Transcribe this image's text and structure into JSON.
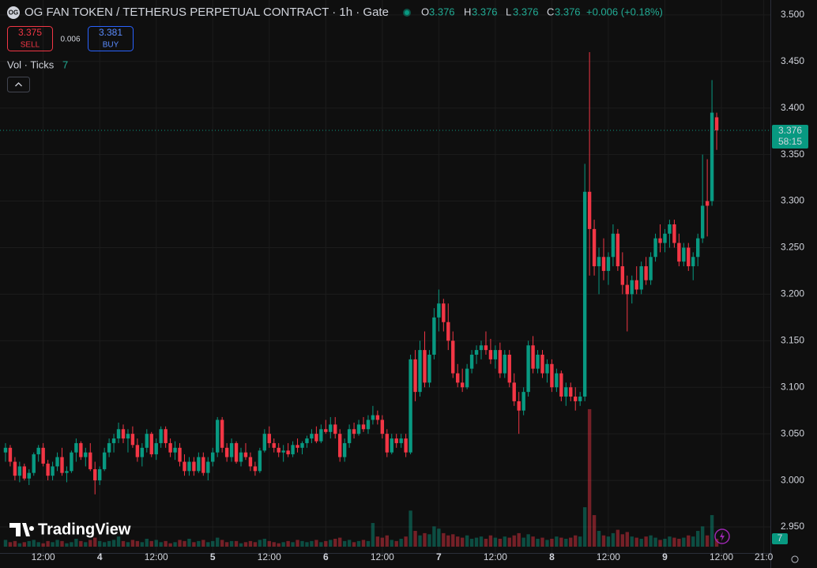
{
  "chart_data": {
    "type": "candlestick",
    "title": "OG FAN TOKEN / TETHERUS PERPETUAL CONTRACT · 1h · Gate",
    "header": {
      "o_label": "O",
      "o": "3.376",
      "h_label": "H",
      "h": "3.376",
      "l_label": "L",
      "l": "3.376",
      "c_label": "C",
      "c": "3.376",
      "change": "+0.006 (+0.18%)"
    },
    "trade": {
      "sell_price": "3.375",
      "sell_label": "SELL",
      "spread": "0.006",
      "buy_price": "3.381",
      "buy_label": "BUY"
    },
    "volume_label": "Vol · Ticks",
    "brand": "TradingView",
    "up_color": "#089981",
    "down_color": "#f23645",
    "xlim": [
      -1.17,
      162.4
    ],
    "xticks": [
      {
        "value": 8,
        "label": "12:00"
      },
      {
        "value": 20,
        "label": "4"
      },
      {
        "value": 32,
        "label": "12:00"
      },
      {
        "value": 44,
        "label": "5"
      },
      {
        "value": 56,
        "label": "12:00"
      },
      {
        "value": 68,
        "label": "6"
      },
      {
        "value": 80,
        "label": "12:00"
      },
      {
        "value": 92,
        "label": "7"
      },
      {
        "value": 104,
        "label": "12:00"
      },
      {
        "value": 116,
        "label": "8"
      },
      {
        "value": 128,
        "label": "12:00"
      },
      {
        "value": 140,
        "label": "9"
      },
      {
        "value": 152,
        "label": "12:00"
      },
      {
        "value": 161,
        "label": "21:0"
      }
    ],
    "ylim": [
      2.922,
      3.516
    ],
    "yticks": [
      {
        "value": 2.95,
        "label": "2.950"
      },
      {
        "value": 3.0,
        "label": "3.000"
      },
      {
        "value": 3.05,
        "label": "3.050"
      },
      {
        "value": 3.1,
        "label": "3.100"
      },
      {
        "value": 3.15,
        "label": "3.150"
      },
      {
        "value": 3.2,
        "label": "3.200"
      },
      {
        "value": 3.25,
        "label": "3.250"
      },
      {
        "value": 3.3,
        "label": "3.300"
      },
      {
        "value": 3.35,
        "label": "3.350"
      },
      {
        "value": 3.4,
        "label": "3.400"
      },
      {
        "value": 3.45,
        "label": "3.450"
      },
      {
        "value": 3.5,
        "label": "3.500"
      }
    ],
    "grid": true,
    "last_price": {
      "value": 3.376,
      "label": "3.376"
    },
    "countdown": "58:15",
    "volume_ylim": [
      0,
      485
    ],
    "candles": [
      [
        3.03,
        3.04,
        3.02,
        3.035
      ],
      [
        3.035,
        3.038,
        3.015,
        3.02
      ],
      [
        3.02,
        3.025,
        3.0,
        3.005
      ],
      [
        3.005,
        3.02,
        2.998,
        3.015
      ],
      [
        3.015,
        3.018,
        3.0,
        3.002
      ],
      [
        3.002,
        3.012,
        2.995,
        3.008
      ],
      [
        3.008,
        3.03,
        3.005,
        3.028
      ],
      [
        3.028,
        3.038,
        3.02,
        3.035
      ],
      [
        3.035,
        3.04,
        3.015,
        3.018
      ],
      [
        3.018,
        3.022,
        3.0,
        3.005
      ],
      [
        3.005,
        3.02,
        3.0,
        3.015
      ],
      [
        3.015,
        3.03,
        3.01,
        3.025
      ],
      [
        3.025,
        3.035,
        3.005,
        3.008
      ],
      [
        3.008,
        3.015,
        2.998,
        3.01
      ],
      [
        3.01,
        3.032,
        3.008,
        3.03
      ],
      [
        3.03,
        3.045,
        3.02,
        3.04
      ],
      [
        3.04,
        3.042,
        3.022,
        3.025
      ],
      [
        3.025,
        3.035,
        3.015,
        3.03
      ],
      [
        3.03,
        3.04,
        3.01,
        3.012
      ],
      [
        3.012,
        3.02,
        2.985,
        3.0
      ],
      [
        3.0,
        3.015,
        2.995,
        3.012
      ],
      [
        3.012,
        3.035,
        3.01,
        3.03
      ],
      [
        3.03,
        3.045,
        3.025,
        3.04
      ],
      [
        3.04,
        3.05,
        3.03,
        3.045
      ],
      [
        3.045,
        3.062,
        3.04,
        3.055
      ],
      [
        3.055,
        3.06,
        3.04,
        3.045
      ],
      [
        3.045,
        3.055,
        3.03,
        3.05
      ],
      [
        3.05,
        3.058,
        3.035,
        3.038
      ],
      [
        3.038,
        3.045,
        3.02,
        3.025
      ],
      [
        3.025,
        3.04,
        3.015,
        3.035
      ],
      [
        3.035,
        3.055,
        3.03,
        3.05
      ],
      [
        3.05,
        3.052,
        3.025,
        3.028
      ],
      [
        3.028,
        3.045,
        3.022,
        3.04
      ],
      [
        3.04,
        3.058,
        3.035,
        3.055
      ],
      [
        3.055,
        3.058,
        3.035,
        3.04
      ],
      [
        3.04,
        3.045,
        3.025,
        3.03
      ],
      [
        3.03,
        3.042,
        3.022,
        3.035
      ],
      [
        3.035,
        3.04,
        3.015,
        3.02
      ],
      [
        3.02,
        3.028,
        3.005,
        3.01
      ],
      [
        3.01,
        3.025,
        3.005,
        3.02
      ],
      [
        3.02,
        3.025,
        3.005,
        3.01
      ],
      [
        3.01,
        3.03,
        3.008,
        3.025
      ],
      [
        3.025,
        3.03,
        3.005,
        3.008
      ],
      [
        3.008,
        3.025,
        3.0,
        3.02
      ],
      [
        3.02,
        3.035,
        3.015,
        3.03
      ],
      [
        3.03,
        3.068,
        3.025,
        3.065
      ],
      [
        3.065,
        3.068,
        3.03,
        3.035
      ],
      [
        3.035,
        3.04,
        3.02,
        3.025
      ],
      [
        3.025,
        3.045,
        3.02,
        3.04
      ],
      [
        3.04,
        3.042,
        3.018,
        3.02
      ],
      [
        3.02,
        3.035,
        3.015,
        3.03
      ],
      [
        3.03,
        3.04,
        3.022,
        3.025
      ],
      [
        3.025,
        3.03,
        3.01,
        3.015
      ],
      [
        3.015,
        3.02,
        3.005,
        3.01
      ],
      [
        3.01,
        3.035,
        3.008,
        3.032
      ],
      [
        3.032,
        3.055,
        3.03,
        3.05
      ],
      [
        3.05,
        3.058,
        3.035,
        3.04
      ],
      [
        3.04,
        3.045,
        3.03,
        3.035
      ],
      [
        3.035,
        3.04,
        3.025,
        3.03
      ],
      [
        3.03,
        3.038,
        3.02,
        3.032
      ],
      [
        3.032,
        3.04,
        3.025,
        3.028
      ],
      [
        3.028,
        3.042,
        3.025,
        3.038
      ],
      [
        3.038,
        3.045,
        3.03,
        3.035
      ],
      [
        3.035,
        3.042,
        3.028,
        3.04
      ],
      [
        3.04,
        3.048,
        3.035,
        3.045
      ],
      [
        3.045,
        3.055,
        3.04,
        3.05
      ],
      [
        3.05,
        3.058,
        3.04,
        3.042
      ],
      [
        3.042,
        3.06,
        3.04,
        3.055
      ],
      [
        3.055,
        3.065,
        3.05,
        3.052
      ],
      [
        3.052,
        3.068,
        3.045,
        3.06
      ],
      [
        3.06,
        3.068,
        3.045,
        3.05
      ],
      [
        3.05,
        3.055,
        3.02,
        3.025
      ],
      [
        3.025,
        3.045,
        3.02,
        3.04
      ],
      [
        3.04,
        3.06,
        3.035,
        3.055
      ],
      [
        3.055,
        3.062,
        3.045,
        3.05
      ],
      [
        3.05,
        3.065,
        3.048,
        3.06
      ],
      [
        3.06,
        3.068,
        3.052,
        3.055
      ],
      [
        3.055,
        3.07,
        3.05,
        3.065
      ],
      [
        3.065,
        3.08,
        3.06,
        3.07
      ],
      [
        3.07,
        3.075,
        3.06,
        3.065
      ],
      [
        3.065,
        3.07,
        3.045,
        3.05
      ],
      [
        3.05,
        3.055,
        3.025,
        3.03
      ],
      [
        3.03,
        3.05,
        3.028,
        3.045
      ],
      [
        3.045,
        3.05,
        3.035,
        3.04
      ],
      [
        3.04,
        3.05,
        3.035,
        3.045
      ],
      [
        3.045,
        3.05,
        3.025,
        3.03
      ],
      [
        3.03,
        3.135,
        3.028,
        3.13
      ],
      [
        3.13,
        3.14,
        3.085,
        3.095
      ],
      [
        3.095,
        3.15,
        3.09,
        3.14
      ],
      [
        3.14,
        3.16,
        3.1,
        3.105
      ],
      [
        3.105,
        3.14,
        3.1,
        3.135
      ],
      [
        3.135,
        3.185,
        3.13,
        3.175
      ],
      [
        3.175,
        3.205,
        3.16,
        3.19
      ],
      [
        3.19,
        3.195,
        3.16,
        3.17
      ],
      [
        3.17,
        3.19,
        3.14,
        3.15
      ],
      [
        3.15,
        3.16,
        3.11,
        3.115
      ],
      [
        3.115,
        3.125,
        3.1,
        3.105
      ],
      [
        3.105,
        3.12,
        3.095,
        3.1
      ],
      [
        3.1,
        3.125,
        3.098,
        3.12
      ],
      [
        3.12,
        3.14,
        3.115,
        3.135
      ],
      [
        3.135,
        3.145,
        3.125,
        3.14
      ],
      [
        3.14,
        3.15,
        3.13,
        3.145
      ],
      [
        3.145,
        3.16,
        3.135,
        3.14
      ],
      [
        3.14,
        3.152,
        3.125,
        3.13
      ],
      [
        3.13,
        3.145,
        3.12,
        3.14
      ],
      [
        3.14,
        3.148,
        3.11,
        3.115
      ],
      [
        3.115,
        3.14,
        3.11,
        3.135
      ],
      [
        3.135,
        3.14,
        3.1,
        3.105
      ],
      [
        3.105,
        3.115,
        3.08,
        3.085
      ],
      [
        3.085,
        3.095,
        3.05,
        3.075
      ],
      [
        3.075,
        3.1,
        3.07,
        3.095
      ],
      [
        3.095,
        3.15,
        3.09,
        3.145
      ],
      [
        3.145,
        3.155,
        3.115,
        3.12
      ],
      [
        3.12,
        3.14,
        3.115,
        3.135
      ],
      [
        3.135,
        3.14,
        3.11,
        3.115
      ],
      [
        3.115,
        3.13,
        3.105,
        3.125
      ],
      [
        3.125,
        3.13,
        3.095,
        3.1
      ],
      [
        3.1,
        3.12,
        3.095,
        3.115
      ],
      [
        3.115,
        3.118,
        3.085,
        3.09
      ],
      [
        3.09,
        3.105,
        3.08,
        3.1
      ],
      [
        3.1,
        3.105,
        3.085,
        3.09
      ],
      [
        3.09,
        3.1,
        3.075,
        3.085
      ],
      [
        3.085,
        3.095,
        3.08,
        3.09
      ],
      [
        3.09,
        3.34,
        3.085,
        3.31
      ],
      [
        3.31,
        3.46,
        3.22,
        3.27
      ],
      [
        3.27,
        3.28,
        3.22,
        3.23
      ],
      [
        3.23,
        3.25,
        3.2,
        3.24
      ],
      [
        3.24,
        3.26,
        3.215,
        3.225
      ],
      [
        3.225,
        3.245,
        3.21,
        3.24
      ],
      [
        3.24,
        3.275,
        3.23,
        3.265
      ],
      [
        3.265,
        3.27,
        3.225,
        3.23
      ],
      [
        3.23,
        3.245,
        3.2,
        3.21
      ],
      [
        3.21,
        3.22,
        3.16,
        3.2
      ],
      [
        3.2,
        3.22,
        3.19,
        3.215
      ],
      [
        3.215,
        3.23,
        3.2,
        3.205
      ],
      [
        3.205,
        3.235,
        3.2,
        3.23
      ],
      [
        3.23,
        3.24,
        3.21,
        3.215
      ],
      [
        3.215,
        3.245,
        3.21,
        3.24
      ],
      [
        3.24,
        3.265,
        3.235,
        3.26
      ],
      [
        3.26,
        3.275,
        3.245,
        3.255
      ],
      [
        3.255,
        3.27,
        3.245,
        3.265
      ],
      [
        3.265,
        3.28,
        3.25,
        3.275
      ],
      [
        3.275,
        3.28,
        3.25,
        3.255
      ],
      [
        3.255,
        3.265,
        3.23,
        3.235
      ],
      [
        3.235,
        3.255,
        3.23,
        3.25
      ],
      [
        3.25,
        3.255,
        3.225,
        3.23
      ],
      [
        3.23,
        3.245,
        3.215,
        3.24
      ],
      [
        3.24,
        3.265,
        3.23,
        3.26
      ],
      [
        3.26,
        3.35,
        3.255,
        3.295
      ],
      [
        3.3,
        3.345,
        3.262,
        3.295
      ],
      [
        3.3,
        3.43,
        3.295,
        3.395
      ],
      [
        3.39,
        3.395,
        3.355,
        3.376
      ]
    ],
    "volume": [
      6,
      4,
      5,
      3,
      4,
      5,
      6,
      4,
      3,
      5,
      4,
      6,
      5,
      3,
      4,
      7,
      5,
      4,
      6,
      8,
      5,
      4,
      5,
      6,
      9,
      5,
      4,
      6,
      5,
      4,
      7,
      5,
      6,
      4,
      5,
      3,
      4,
      6,
      5,
      7,
      4,
      5,
      6,
      4,
      5,
      8,
      6,
      4,
      5,
      5,
      3,
      4,
      5,
      4,
      6,
      7,
      5,
      4,
      3,
      4,
      5,
      4,
      6,
      5,
      4,
      5,
      6,
      4,
      5,
      6,
      7,
      8,
      5,
      6,
      4,
      5,
      6,
      5,
      21,
      9,
      8,
      10,
      6,
      5,
      7,
      9,
      32,
      14,
      10,
      12,
      11,
      18,
      16,
      12,
      10,
      11,
      9,
      8,
      10,
      7,
      8,
      9,
      7,
      10,
      8,
      7,
      9,
      8,
      10,
      12,
      8,
      11,
      9,
      7,
      8,
      6,
      7,
      9,
      8,
      7,
      8,
      10,
      9,
      35,
      122,
      28,
      14,
      10,
      9,
      12,
      15,
      11,
      13,
      9,
      8,
      7,
      9,
      10,
      8,
      6,
      7,
      9,
      8,
      7,
      8,
      10,
      9,
      14,
      18,
      10,
      28,
      7
    ]
  }
}
